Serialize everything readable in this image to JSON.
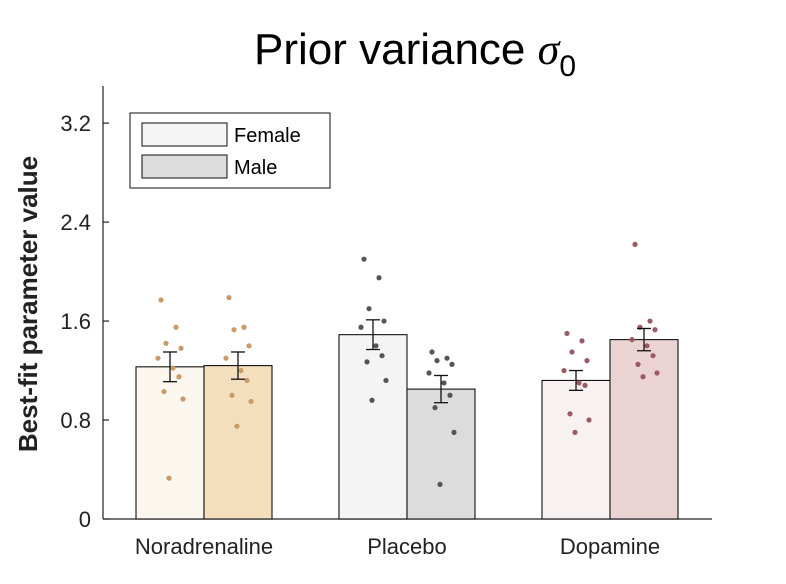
{
  "chart_data": {
    "type": "bar",
    "title": "Prior variance ",
    "title_symbol": "σ",
    "title_subscript": "0",
    "xlabel": "",
    "ylabel": "Best-fit parameter value",
    "ylim": [
      0,
      3.5
    ],
    "yticks": [
      0,
      0.8,
      1.6,
      2.4,
      3.2
    ],
    "ytick_labels": [
      "0",
      "0.8",
      "1.6",
      "2.4",
      "3.2"
    ],
    "grid": false,
    "legend_position": "top-left",
    "categories": [
      "Noradrenaline",
      "Placebo",
      "Dopamine"
    ],
    "series": [
      {
        "name": "Female",
        "legend_color": "#f5f5f5",
        "values": [
          1.23,
          1.49,
          1.12
        ],
        "errors": [
          0.12,
          0.12,
          0.08
        ],
        "bar_colors": [
          "#fbf6ee",
          "#f4f4f4",
          "#f8f1f1"
        ],
        "dot_colors": [
          "#c99a68",
          "#555555",
          "#9a5a62"
        ],
        "points": [
          [
            1.77,
            1.55,
            1.42,
            1.38,
            1.3,
            1.22,
            1.15,
            1.03,
            0.97,
            0.33
          ],
          [
            2.1,
            1.95,
            1.7,
            1.6,
            1.55,
            1.4,
            1.32,
            1.27,
            1.12,
            0.96
          ],
          [
            1.5,
            1.44,
            1.35,
            1.28,
            1.2,
            1.1,
            1.08,
            0.85,
            0.8,
            0.7
          ]
        ]
      },
      {
        "name": "Male",
        "legend_color": "#dcdcdc",
        "values": [
          1.24,
          1.05,
          1.45
        ],
        "errors": [
          0.11,
          0.11,
          0.09
        ],
        "bar_colors": [
          "#f3dfbe",
          "#dcdcdc",
          "#ecd3d3"
        ],
        "dot_colors": [
          "#c99a68",
          "#555555",
          "#9a5a62"
        ],
        "points": [
          [
            1.79,
            1.55,
            1.53,
            1.4,
            1.3,
            1.2,
            1.12,
            1.0,
            0.95,
            0.75
          ],
          [
            1.35,
            1.3,
            1.28,
            1.25,
            1.18,
            1.1,
            1.0,
            0.9,
            0.7,
            0.28
          ],
          [
            2.22,
            1.6,
            1.55,
            1.53,
            1.45,
            1.4,
            1.32,
            1.25,
            1.18,
            1.15
          ]
        ]
      }
    ]
  }
}
